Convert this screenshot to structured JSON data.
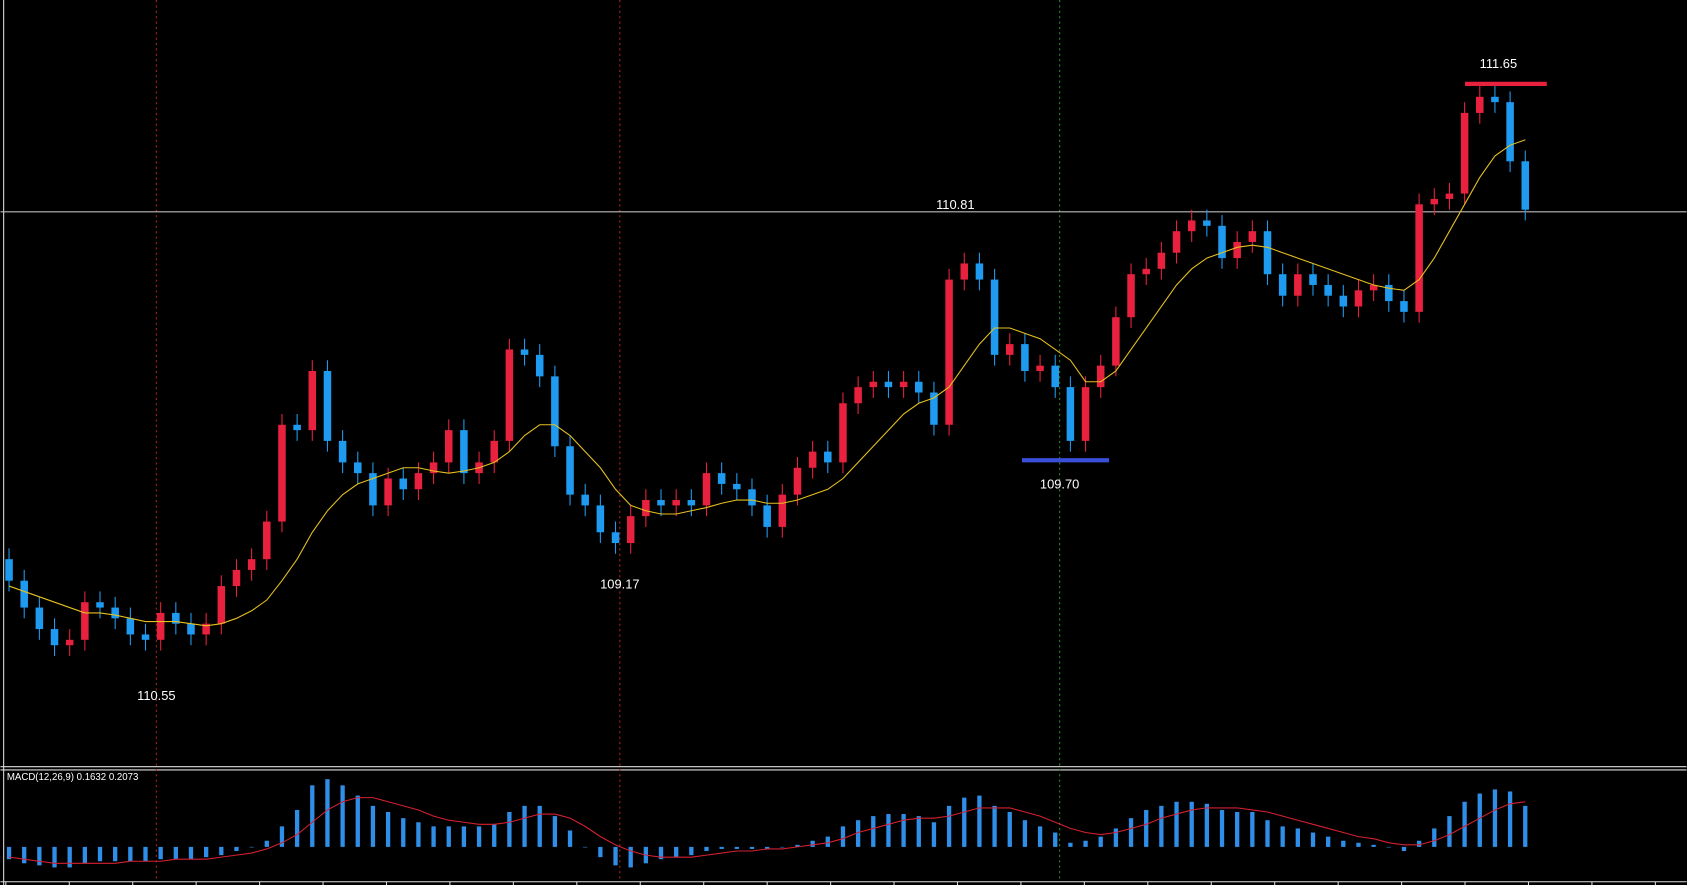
{
  "chart_data": [
    {
      "type": "candlestick",
      "open": [
        107.3,
        107.1,
        106.85,
        106.65,
        106.5,
        106.55,
        106.9,
        106.85,
        106.75,
        106.6,
        106.55,
        106.8,
        106.7,
        106.6,
        106.7,
        107.05,
        107.2,
        107.3,
        107.65,
        108.55,
        108.5,
        109.05,
        108.4,
        108.2,
        108.1,
        107.8,
        108.05,
        107.95,
        108.1,
        108.2,
        108.5,
        108.1,
        108.2,
        108.4,
        109.25,
        109.2,
        109.0,
        108.35,
        107.9,
        107.8,
        107.55,
        107.45,
        107.7,
        107.85,
        107.8,
        107.85,
        107.8,
        108.1,
        108.0,
        107.95,
        107.8,
        107.6,
        107.9,
        108.15,
        108.3,
        108.2,
        108.75,
        108.9,
        108.95,
        108.9,
        108.95,
        108.85,
        108.55,
        109.9,
        110.05,
        109.9,
        109.2,
        109.3,
        109.05,
        109.1,
        108.9,
        108.4,
        108.9,
        109.1,
        109.55,
        109.95,
        110.0,
        110.15,
        110.35,
        110.45,
        110.4,
        110.1,
        110.25,
        110.35,
        109.95,
        109.75,
        109.95,
        109.85,
        109.75,
        109.65,
        109.8,
        109.85,
        109.7,
        109.6,
        110.6,
        110.65,
        110.7,
        111.45,
        111.6,
        111.55,
        111.0
      ],
      "high": [
        107.4,
        107.2,
        106.95,
        106.75,
        106.65,
        107.0,
        107.0,
        106.95,
        106.85,
        106.7,
        106.9,
        106.9,
        106.8,
        106.8,
        107.15,
        107.3,
        107.4,
        107.75,
        108.65,
        108.65,
        109.15,
        109.15,
        108.5,
        108.3,
        108.2,
        108.15,
        108.15,
        108.2,
        108.3,
        108.6,
        108.6,
        108.3,
        108.5,
        109.35,
        109.35,
        109.3,
        109.1,
        108.45,
        108.0,
        107.9,
        107.65,
        107.8,
        107.95,
        107.95,
        107.95,
        107.95,
        108.2,
        108.2,
        108.1,
        108.05,
        107.9,
        108.0,
        108.25,
        108.4,
        108.4,
        108.85,
        109.0,
        109.05,
        109.05,
        109.05,
        109.05,
        108.95,
        110.0,
        110.15,
        110.15,
        110.0,
        109.4,
        109.4,
        109.2,
        109.2,
        109.0,
        109.0,
        109.2,
        109.65,
        110.05,
        110.1,
        110.25,
        110.45,
        110.55,
        110.55,
        110.5,
        110.35,
        110.45,
        110.45,
        110.05,
        110.05,
        110.05,
        109.95,
        109.85,
        109.9,
        109.95,
        109.95,
        109.8,
        110.7,
        110.75,
        110.8,
        111.55,
        111.7,
        111.7,
        111.65,
        111.1
      ],
      "low": [
        107.0,
        106.75,
        106.55,
        106.4,
        106.4,
        106.45,
        106.75,
        106.65,
        106.5,
        106.45,
        106.45,
        106.6,
        106.5,
        106.5,
        106.6,
        106.95,
        107.1,
        107.2,
        107.55,
        108.4,
        108.4,
        108.3,
        108.1,
        108.0,
        107.7,
        107.7,
        107.85,
        107.85,
        108.0,
        108.1,
        108.0,
        108.0,
        108.1,
        108.3,
        109.1,
        108.9,
        108.25,
        107.8,
        107.7,
        107.45,
        107.35,
        107.35,
        107.6,
        107.7,
        107.7,
        107.7,
        107.7,
        107.9,
        107.85,
        107.7,
        107.5,
        107.5,
        107.8,
        108.05,
        108.1,
        108.1,
        108.65,
        108.8,
        108.8,
        108.8,
        108.75,
        108.45,
        108.45,
        109.8,
        109.8,
        109.1,
        109.1,
        108.95,
        108.95,
        108.8,
        108.3,
        108.3,
        108.8,
        109.0,
        109.45,
        109.85,
        109.9,
        110.05,
        110.25,
        110.3,
        110.0,
        110.0,
        110.15,
        109.85,
        109.65,
        109.65,
        109.75,
        109.65,
        109.55,
        109.55,
        109.7,
        109.6,
        109.5,
        109.5,
        110.5,
        110.55,
        110.6,
        111.35,
        111.45,
        110.9,
        110.45
      ],
      "close": [
        107.1,
        106.85,
        106.65,
        106.5,
        106.55,
        106.9,
        106.85,
        106.75,
        106.6,
        106.55,
        106.8,
        106.7,
        106.6,
        106.7,
        107.05,
        107.2,
        107.3,
        107.65,
        108.55,
        108.5,
        109.05,
        108.4,
        108.2,
        108.1,
        107.8,
        108.05,
        107.95,
        108.1,
        108.2,
        108.5,
        108.1,
        108.2,
        108.4,
        109.25,
        109.2,
        109.0,
        108.35,
        107.9,
        107.8,
        107.55,
        107.45,
        107.7,
        107.85,
        107.8,
        107.85,
        107.8,
        108.1,
        108.0,
        107.95,
        107.8,
        107.6,
        107.9,
        108.15,
        108.3,
        108.2,
        108.75,
        108.9,
        108.95,
        108.9,
        108.95,
        108.85,
        108.55,
        109.9,
        110.05,
        109.9,
        109.2,
        109.3,
        109.05,
        109.1,
        108.9,
        108.4,
        108.9,
        109.1,
        109.55,
        109.95,
        110.0,
        110.15,
        110.35,
        110.45,
        110.4,
        110.1,
        110.25,
        110.35,
        109.95,
        109.75,
        109.95,
        109.85,
        109.75,
        109.65,
        109.8,
        109.85,
        109.7,
        109.6,
        110.6,
        110.65,
        110.7,
        111.45,
        111.6,
        111.55,
        111.0,
        110.55
      ],
      "ma": [
        107.05,
        107.0,
        106.95,
        106.9,
        106.85,
        106.8,
        106.8,
        106.78,
        106.75,
        106.72,
        106.72,
        106.72,
        106.7,
        106.68,
        106.7,
        106.75,
        106.82,
        106.92,
        107.1,
        107.3,
        107.55,
        107.75,
        107.9,
        108.0,
        108.05,
        108.1,
        108.15,
        108.15,
        108.12,
        108.1,
        108.12,
        108.15,
        108.2,
        108.3,
        108.45,
        108.55,
        108.55,
        108.45,
        108.3,
        108.15,
        107.95,
        107.8,
        107.75,
        107.72,
        107.72,
        107.75,
        107.78,
        107.82,
        107.85,
        107.85,
        107.82,
        107.82,
        107.85,
        107.9,
        107.95,
        108.05,
        108.2,
        108.35,
        108.5,
        108.65,
        108.75,
        108.8,
        108.9,
        109.1,
        109.3,
        109.45,
        109.45,
        109.4,
        109.35,
        109.25,
        109.15,
        108.95,
        108.95,
        109.05,
        109.25,
        109.45,
        109.65,
        109.85,
        110.0,
        110.1,
        110.15,
        110.2,
        110.22,
        110.2,
        110.15,
        110.1,
        110.05,
        110.0,
        109.95,
        109.9,
        109.85,
        109.82,
        109.8,
        109.9,
        110.1,
        110.35,
        110.6,
        110.85,
        111.05,
        111.15,
        111.2
      ],
      "ylim": [
        105.38,
        112.5
      ],
      "up_color": "#e8213e",
      "down_color": "#1e9bf0",
      "ma_color": "#e6c020",
      "annotations": [
        "110.55",
        "109.17",
        "110.81",
        "109.70",
        "111.65"
      ]
    },
    {
      "type": "macd",
      "title": "MACD(12,26,9) 0.1632 0.2073",
      "values": [
        -0.06,
        -0.08,
        -0.09,
        -0.1,
        -0.1,
        -0.08,
        -0.07,
        -0.07,
        -0.07,
        -0.07,
        -0.06,
        -0.06,
        -0.06,
        -0.05,
        -0.04,
        -0.02,
        0.0,
        0.03,
        0.1,
        0.18,
        0.3,
        0.33,
        0.3,
        0.25,
        0.2,
        0.17,
        0.14,
        0.12,
        0.1,
        0.1,
        0.1,
        0.1,
        0.11,
        0.17,
        0.2,
        0.2,
        0.15,
        0.08,
        0.0,
        -0.05,
        -0.09,
        -0.1,
        -0.08,
        -0.06,
        -0.05,
        -0.04,
        -0.02,
        -0.01,
        -0.01,
        -0.01,
        -0.01,
        0.0,
        0.01,
        0.03,
        0.05,
        0.1,
        0.13,
        0.15,
        0.16,
        0.16,
        0.15,
        0.12,
        0.2,
        0.24,
        0.25,
        0.2,
        0.17,
        0.13,
        0.1,
        0.07,
        0.02,
        0.03,
        0.05,
        0.09,
        0.14,
        0.18,
        0.2,
        0.22,
        0.22,
        0.21,
        0.18,
        0.17,
        0.17,
        0.13,
        0.1,
        0.09,
        0.07,
        0.05,
        0.03,
        0.02,
        0.01,
        0.0,
        -0.02,
        0.03,
        0.09,
        0.15,
        0.22,
        0.26,
        0.28,
        0.27,
        0.2
      ],
      "signal": [
        -0.05,
        -0.06,
        -0.07,
        -0.08,
        -0.08,
        -0.08,
        -0.08,
        -0.08,
        -0.07,
        -0.07,
        -0.07,
        -0.06,
        -0.06,
        -0.06,
        -0.05,
        -0.04,
        -0.03,
        -0.01,
        0.02,
        0.06,
        0.12,
        0.18,
        0.22,
        0.24,
        0.24,
        0.22,
        0.2,
        0.18,
        0.15,
        0.13,
        0.12,
        0.11,
        0.11,
        0.12,
        0.14,
        0.16,
        0.16,
        0.14,
        0.1,
        0.05,
        0.01,
        -0.02,
        -0.04,
        -0.05,
        -0.05,
        -0.05,
        -0.04,
        -0.03,
        -0.02,
        -0.02,
        -0.01,
        -0.01,
        0.0,
        0.01,
        0.02,
        0.04,
        0.07,
        0.09,
        0.11,
        0.13,
        0.14,
        0.14,
        0.15,
        0.17,
        0.19,
        0.19,
        0.19,
        0.17,
        0.15,
        0.12,
        0.09,
        0.07,
        0.06,
        0.07,
        0.09,
        0.11,
        0.14,
        0.16,
        0.18,
        0.19,
        0.19,
        0.19,
        0.18,
        0.17,
        0.15,
        0.13,
        0.11,
        0.09,
        0.07,
        0.05,
        0.04,
        0.02,
        0.01,
        0.01,
        0.03,
        0.06,
        0.1,
        0.14,
        0.18,
        0.21,
        0.22
      ],
      "ylim": [
        -0.17,
        0.375
      ],
      "color": "#2f8fe8",
      "signal_color": "#d42030"
    }
  ]
}
